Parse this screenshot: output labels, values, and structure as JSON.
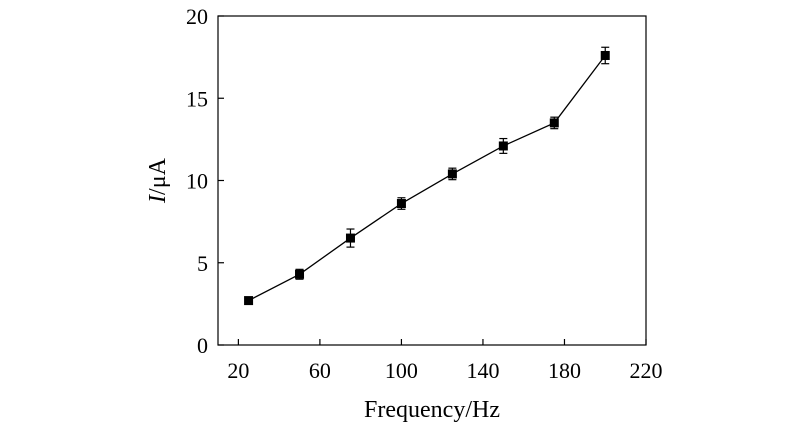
{
  "chart_data": {
    "type": "line",
    "title": "",
    "xlabel": "Frequency/Hz",
    "ylabel_italic": "I",
    "ylabel_rest": "/μA",
    "xlim": [
      10,
      220
    ],
    "ylim": [
      0,
      20
    ],
    "x_ticks": [
      20,
      60,
      100,
      140,
      180,
      220
    ],
    "y_ticks": [
      0,
      5,
      10,
      15,
      20
    ],
    "grid": false,
    "series": [
      {
        "name": "I",
        "marker": "square",
        "color": "#000000",
        "x": [
          25,
          50,
          75,
          100,
          125,
          150,
          175,
          200
        ],
        "values": [
          2.7,
          4.3,
          6.5,
          8.6,
          10.4,
          12.1,
          13.5,
          17.6
        ],
        "error": [
          0.2,
          0.3,
          0.55,
          0.35,
          0.35,
          0.45,
          0.35,
          0.5
        ]
      }
    ]
  }
}
